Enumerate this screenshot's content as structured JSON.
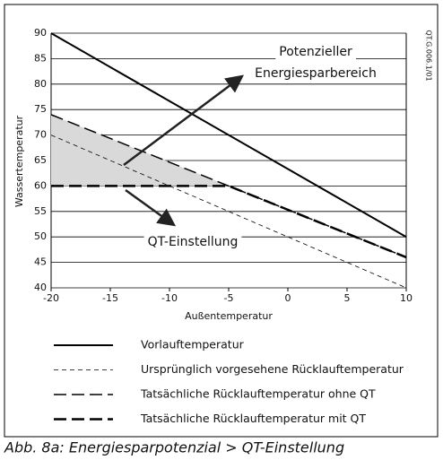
{
  "chart_data": {
    "type": "line",
    "y_label": "Wassertemperatur",
    "x_label": "Außentemperatur",
    "side_label": "QT.G.006.1/01",
    "caption": "Abb. 8a: Energiesparpotenzial > QT-Einstellung",
    "xlim": [
      -20,
      10
    ],
    "xticks": [
      -20,
      -15,
      -10,
      -5,
      0,
      5,
      10
    ],
    "ylim": [
      40,
      90
    ],
    "yticks": [
      40,
      45,
      50,
      55,
      60,
      65,
      70,
      75,
      80,
      85,
      90
    ],
    "grid": true,
    "shade_color": "#d9d9d9",
    "annotations": [
      {
        "lines": [
          "Potenzieller",
          "Energiesparbereich"
        ]
      },
      {
        "lines": [
          "QT-Einstellung"
        ]
      }
    ],
    "series": [
      {
        "name": "Vorlauftemperatur",
        "color": "#000",
        "style": "solid",
        "x": [
          -20,
          10
        ],
        "values": [
          90,
          50
        ]
      },
      {
        "name": "Ursprünglich vorgesehene Rücklauftemperatur",
        "color": "#000",
        "style": "dashed-thin",
        "x": [
          -20,
          10
        ],
        "values": [
          70,
          40
        ]
      },
      {
        "name": "Tatsächliche Rücklauftemperatur ohne QT",
        "color": "#000",
        "style": "dashed",
        "x": [
          -20,
          -5,
          10
        ],
        "values": [
          74,
          60,
          46
        ]
      },
      {
        "name": "Tatsächliche Rücklauftemperatur mit QT",
        "color": "#000",
        "style": "dashed-thick",
        "x": [
          -20,
          -5,
          10
        ],
        "values": [
          60,
          60,
          46
        ]
      }
    ]
  }
}
